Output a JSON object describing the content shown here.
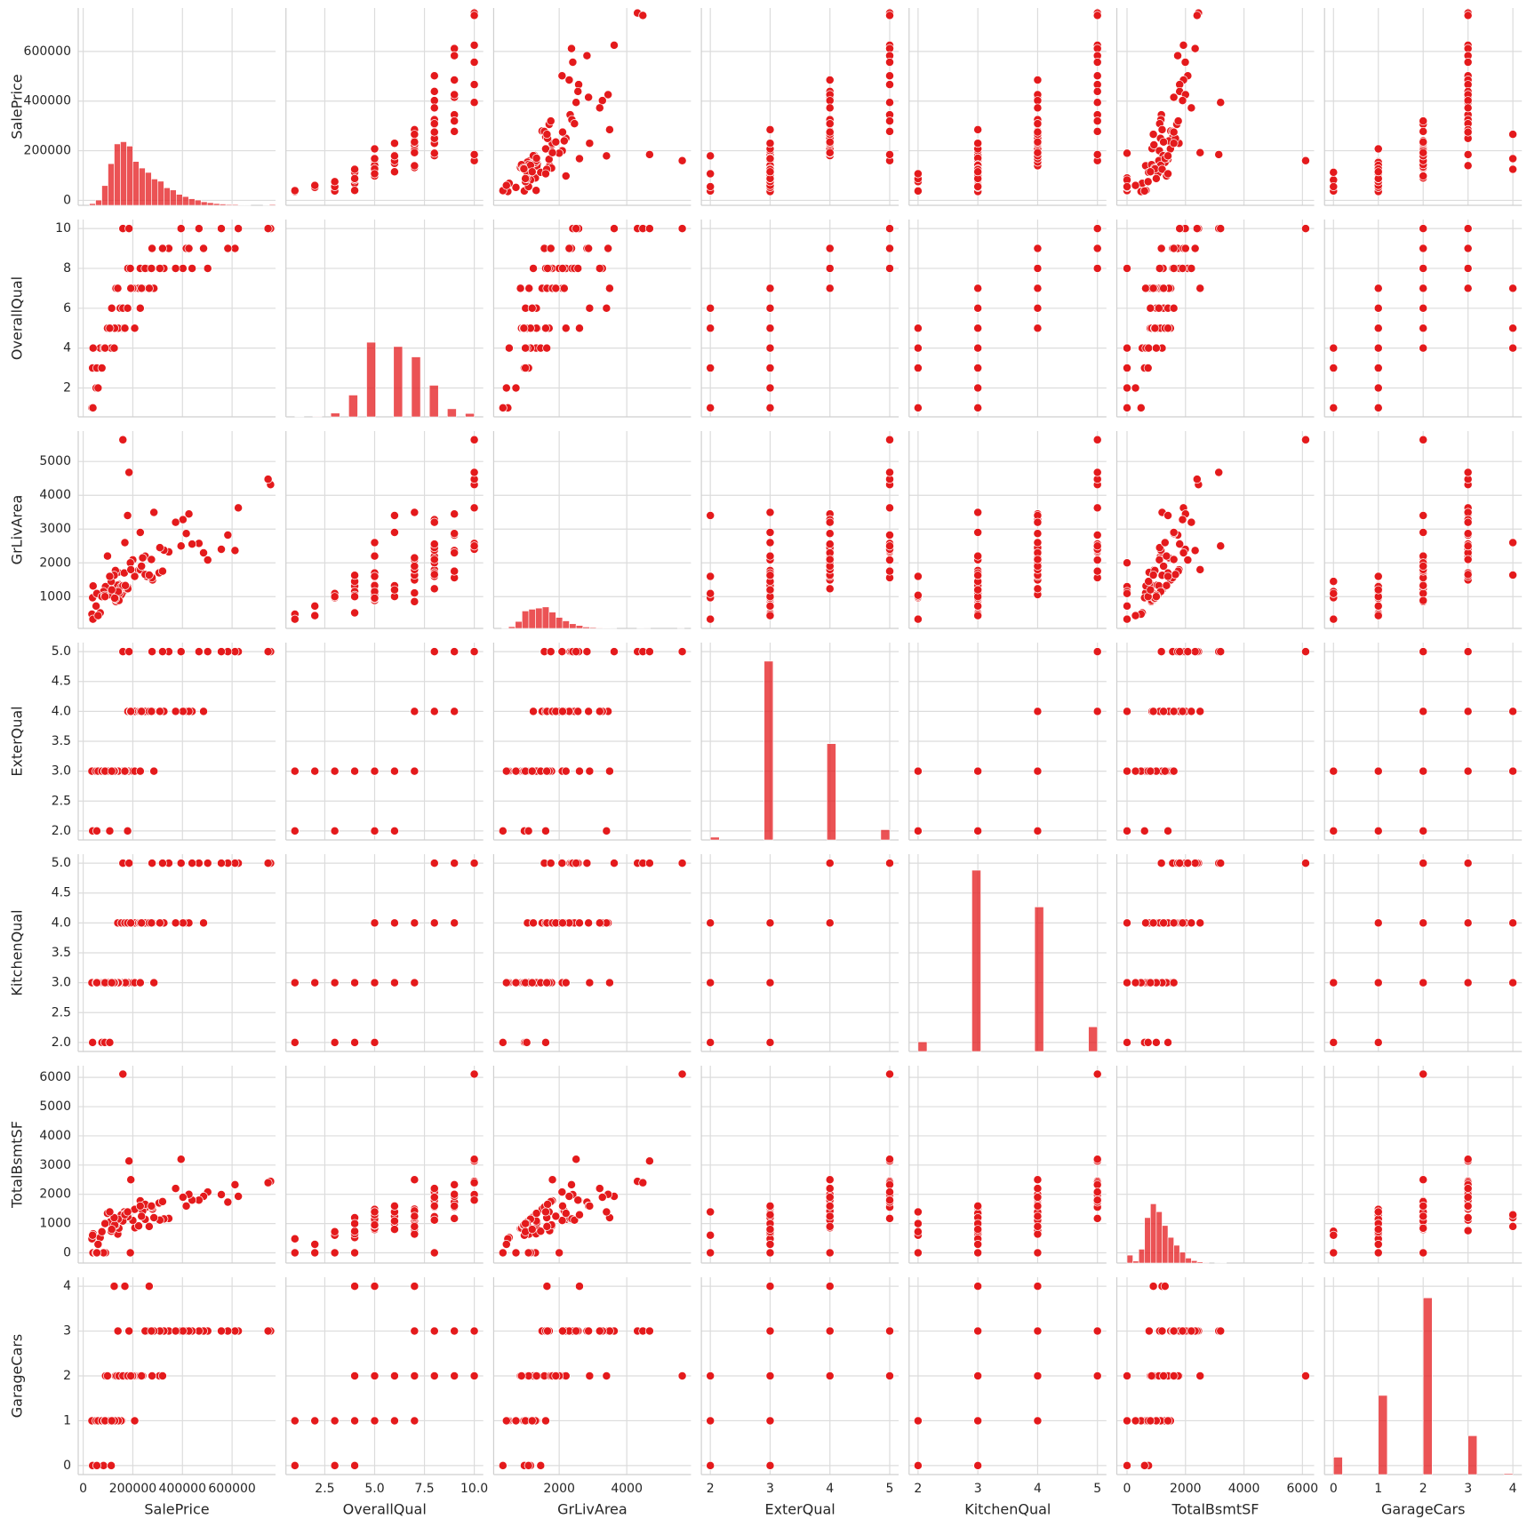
{
  "chart_data": {
    "type": "pairplot",
    "color": "#e41a1c",
    "grid": true,
    "variables": [
      {
        "name": "SalePrice",
        "lim": [
          -20000,
          775000
        ],
        "xticks": [
          0,
          200000,
          400000,
          600000
        ],
        "yticks": [
          0,
          200000,
          400000,
          600000
        ],
        "values": [
          208500,
          181500,
          223500,
          140000,
          250000,
          143000,
          307000,
          200000,
          129900,
          118000,
          129500,
          345000,
          144000,
          279500,
          157000,
          132000,
          149000,
          90000,
          159000,
          139000,
          325300,
          139400,
          230000,
          129900,
          154000,
          256300,
          134800,
          306000,
          207500,
          68500,
          40000,
          149350,
          179900,
          165500,
          277500,
          309000,
          145000,
          153000,
          109000,
          82000,
          160000,
          170000,
          144000,
          130250,
          141000,
          319900,
          239686,
          249700,
          113000,
          127000,
          755000,
          745000,
          160000,
          184750,
          625000,
          611657,
          582933,
          556581,
          501837,
          485000,
          466500,
          438780,
          415298,
          35311,
          39300,
          37900,
          52000,
          60000,
          55000,
          75500,
          87000,
          98000,
          394432,
          426000,
          285000,
          190000,
          125000,
          168000,
          265979,
          402000,
          179000,
          107000,
          230000,
          372500,
          192000,
          88000,
          115000,
          235000,
          275000
        ],
        "hist": {
          "bins": [
            25000,
            50000,
            75000,
            100000,
            125000,
            150000,
            175000,
            200000,
            225000,
            250000,
            275000,
            300000,
            325000,
            350000,
            375000,
            400000,
            425000,
            450000,
            475000,
            500000,
            525000,
            550000,
            575000,
            600000,
            625000,
            650000,
            675000,
            700000,
            725000,
            750000,
            775000
          ],
          "counts": [
            4,
            12,
            45,
            95,
            140,
            145,
            135,
            100,
            85,
            75,
            60,
            55,
            40,
            35,
            25,
            20,
            15,
            12,
            8,
            6,
            4,
            3,
            2,
            2,
            1,
            1,
            0,
            0,
            1,
            2
          ],
          "ylim": [
            0,
            450
          ]
        }
      },
      {
        "name": "OverallQual",
        "lim": [
          0.55,
          10.45
        ],
        "xticks": [
          2.5,
          {
            "value": 5,
            "label": "5.0"
          },
          7.5,
          {
            "value": 10,
            "label": "10.0"
          }
        ],
        "yticks": [
          2,
          4,
          6,
          8,
          10
        ],
        "values": [
          7,
          6,
          7,
          7,
          8,
          5,
          8,
          7,
          7,
          5,
          5,
          9,
          5,
          7,
          6,
          7,
          6,
          4,
          5,
          5,
          8,
          7,
          8,
          5,
          5,
          8,
          5,
          8,
          5,
          4,
          4,
          5,
          8,
          5,
          9,
          8,
          5,
          5,
          5,
          4,
          6,
          5,
          5,
          5,
          5,
          9,
          7,
          8,
          4,
          5,
          10,
          10,
          10,
          10,
          10,
          9,
          9,
          10,
          8,
          9,
          10,
          8,
          9,
          1,
          1,
          3,
          2,
          2,
          3,
          3,
          4,
          5,
          10,
          9,
          7,
          8,
          4,
          5,
          7,
          8,
          6,
          5,
          6,
          8,
          7,
          4,
          6,
          7,
          8
        ],
        "hist": {
          "bins": [
            1,
            1.45,
            1.9,
            2.35,
            2.8,
            3.25,
            3.7,
            4.15,
            4.6,
            5.05,
            5.5,
            5.95,
            6.4,
            6.85,
            7.3,
            7.75,
            8.2,
            8.65,
            9.1,
            9.55,
            10
          ],
          "counts": [
            2,
            0,
            3,
            0,
            20,
            0,
            116,
            0,
            397,
            0,
            0,
            374,
            0,
            319,
            0,
            168,
            0,
            43,
            0,
            18
          ],
          "ylim": [
            0,
            1050
          ]
        }
      },
      {
        "name": "GrLivArea",
        "lim": [
          60,
          5900
        ],
        "xticks": [
          2000,
          4000
        ],
        "yticks": [
          1000,
          2000,
          3000,
          4000,
          5000
        ],
        "values": [
          1710,
          1262,
          1786,
          1717,
          2198,
          1362,
          1694,
          2090,
          1774,
          1077,
          1040,
          2324,
          912,
          1494,
          1253,
          854,
          1004,
          1296,
          1114,
          1339,
          2376,
          1108,
          1795,
          1060,
          1060,
          1600,
          900,
          1704,
          1600,
          520,
          1317,
          1228,
          1234,
          1700,
          1561,
          2452,
          1097,
          1297,
          1057,
          1152,
          1324,
          1328,
          884,
          938,
          1150,
          1752,
          2149,
          1656,
          1452,
          955,
          4316,
          4476,
          5642,
          4676,
          3627,
          2364,
          2822,
          2402,
          2084,
          2296,
          2576,
          2555,
          2868,
          480,
          334,
          968,
          720,
          438,
          1092,
          1000,
          1040,
          2200,
          2500,
          3447,
          3493,
          2000,
          1632,
          2600,
          1638,
          3279,
          3400,
          1600,
          2900,
          3200,
          1800,
          1000,
          1200,
          1900,
          2100
        ],
        "hist": {
          "bins": [
            300,
            500,
            700,
            900,
            1100,
            1300,
            1500,
            1700,
            1900,
            2100,
            2300,
            2500,
            2700,
            2900,
            3100,
            3300,
            3500,
            3700,
            3900,
            4100,
            4300,
            4500,
            4700,
            4900,
            5100,
            5300,
            5500,
            5700,
            5900
          ],
          "counts": [
            3,
            15,
            60,
            150,
            165,
            175,
            185,
            140,
            95,
            65,
            40,
            25,
            12,
            8,
            5,
            4,
            2,
            0,
            0,
            0,
            2,
            1,
            0,
            0,
            0,
            0,
            1,
            0
          ],
          "ylim": [
            0,
            1700
          ]
        }
      },
      {
        "name": "ExterQual",
        "lim": [
          1.85,
          5.15
        ],
        "xticks": [
          2,
          3,
          4,
          5
        ],
        "yticks": [
          {
            "value": 2,
            "label": "2.0"
          },
          2.5,
          {
            "value": 3,
            "label": "3.0"
          },
          3.5,
          {
            "value": 4,
            "label": "4.0"
          },
          4.5,
          {
            "value": 5,
            "label": "5.0"
          }
        ],
        "values": [
          4,
          3,
          4,
          3,
          4,
          3,
          4,
          3,
          3,
          3,
          3,
          5,
          3,
          4,
          3,
          3,
          3,
          3,
          3,
          3,
          4,
          3,
          4,
          3,
          3,
          4,
          3,
          4,
          3,
          3,
          3,
          3,
          4,
          3,
          5,
          4,
          3,
          3,
          3,
          3,
          3,
          3,
          3,
          3,
          3,
          5,
          4,
          4,
          3,
          3,
          5,
          5,
          5,
          5,
          5,
          5,
          5,
          5,
          5,
          4,
          5,
          4,
          4,
          3,
          2,
          2,
          3,
          3,
          2,
          3,
          3,
          3,
          5,
          4,
          3,
          4,
          3,
          3,
          4,
          4,
          2,
          2,
          3,
          4,
          4,
          3,
          3,
          4,
          4
        ],
        "hist": {
          "bins": [
            2,
            2.15,
            2.3,
            2.45,
            2.6,
            2.75,
            2.9,
            3.05,
            3.2,
            3.35,
            3.5,
            3.65,
            3.8,
            3.95,
            4.1,
            4.25,
            4.4,
            4.55,
            4.7,
            4.85,
            5
          ],
          "counts": [
            14,
            0,
            0,
            0,
            0,
            0,
            906,
            0,
            0,
            0,
            0,
            0,
            0,
            488,
            0,
            0,
            0,
            0,
            0,
            52
          ],
          "ylim": [
            0,
            1000
          ]
        }
      },
      {
        "name": "KitchenQual",
        "lim": [
          1.85,
          5.15
        ],
        "xticks": [
          2,
          3,
          4,
          5
        ],
        "yticks": [
          {
            "value": 2,
            "label": "2.0"
          },
          2.5,
          {
            "value": 3,
            "label": "3.0"
          },
          3.5,
          {
            "value": 4,
            "label": "4.0"
          },
          4.5,
          {
            "value": 5,
            "label": "5.0"
          }
        ],
        "values": [
          4,
          3,
          4,
          4,
          4,
          3,
          4,
          3,
          3,
          3,
          3,
          5,
          3,
          4,
          3,
          3,
          3,
          3,
          3,
          3,
          4,
          4,
          4,
          3,
          4,
          4,
          3,
          4,
          3,
          3,
          3,
          3,
          4,
          3,
          5,
          4,
          3,
          3,
          3,
          3,
          3,
          3,
          3,
          3,
          3,
          5,
          4,
          4,
          3,
          3,
          5,
          5,
          5,
          5,
          5,
          5,
          5,
          5,
          5,
          4,
          5,
          5,
          4,
          3,
          2,
          2,
          3,
          3,
          3,
          2,
          2,
          3,
          5,
          4,
          3,
          4,
          3,
          4,
          4,
          4,
          4,
          2,
          3,
          4,
          4,
          3,
          3,
          4,
          4
        ],
        "hist": {
          "bins": [
            2,
            2.15,
            2.3,
            2.45,
            2.6,
            2.75,
            2.9,
            3.05,
            3.2,
            3.35,
            3.5,
            3.65,
            3.8,
            3.95,
            4.1,
            4.25,
            4.4,
            4.55,
            4.7,
            4.85,
            5
          ],
          "counts": [
            39,
            0,
            0,
            0,
            0,
            0,
            735,
            0,
            0,
            0,
            0,
            0,
            0,
            586,
            0,
            0,
            0,
            0,
            0,
            100
          ],
          "ylim": [
            0,
            800
          ]
        }
      },
      {
        "name": "TotalBsmtSF",
        "lim": [
          -350,
          6400
        ],
        "xticks": [
          0,
          2000,
          4000,
          6000
        ],
        "yticks": [
          0,
          1000,
          2000,
          3000,
          4000,
          5000,
          6000
        ],
        "values": [
          856,
          1262,
          920,
          756,
          1145,
          796,
          1686,
          1107,
          952,
          991,
          1040,
          1175,
          912,
          1494,
          1253,
          832,
          1004,
          0,
          1114,
          1029,
          1158,
          637,
          1777,
          1040,
          1060,
          1566,
          900,
          1704,
          1484,
          520,
          649,
          1228,
          1234,
          1398,
          1561,
          1117,
          1097,
          1297,
          1057,
          0,
          1088,
          1350,
          840,
          938,
          1150,
          1752,
          1434,
          1656,
          736,
          955,
          2444,
          2396,
          6110,
          3138,
          1930,
          2330,
          1734,
          1992,
          2078,
          1932,
          1800,
          1800,
          1600,
          480,
          0,
          600,
          0,
          290,
          0,
          720,
          1000,
          1350,
          3200,
          2000,
          1200,
          0,
          1200,
          1300,
          900,
          1900,
          1400,
          1400,
          1600,
          2200,
          2500,
          1000,
          800,
          1250,
          1600
        ],
        "hist": {
          "bins": [
            0,
            200,
            400,
            600,
            800,
            1000,
            1200,
            1400,
            1600,
            1800,
            2000,
            2200,
            2400,
            2600,
            2800,
            3000,
            3200,
            3400,
            3600,
            3800,
            4000,
            4200,
            4400,
            4600,
            4800,
            5000,
            5200,
            5400,
            5600,
            5800,
            6000,
            6200
          ],
          "counts": [
            40,
            10,
            70,
            230,
            300,
            260,
            190,
            130,
            90,
            55,
            25,
            12,
            6,
            3,
            0,
            1,
            2,
            0,
            0,
            0,
            0,
            0,
            0,
            0,
            0,
            0,
            0,
            0,
            0,
            0,
            1
          ],
          "ylim": [
            0,
            1000
          ]
        }
      },
      {
        "name": "GarageCars",
        "lim": [
          -0.2,
          4.2
        ],
        "xticks": [
          0,
          1,
          2,
          3,
          4
        ],
        "yticks": [
          0,
          1,
          2,
          3,
          4
        ],
        "values": [
          2,
          2,
          2,
          3,
          3,
          2,
          2,
          2,
          2,
          1,
          1,
          3,
          1,
          3,
          1,
          2,
          2,
          2,
          2,
          1,
          3,
          1,
          2,
          2,
          1,
          3,
          2,
          3,
          1,
          1,
          1,
          1,
          2,
          2,
          2,
          3,
          2,
          1,
          1,
          0,
          2,
          2,
          2,
          1,
          1,
          2,
          2,
          3,
          0,
          1,
          3,
          3,
          2,
          3,
          3,
          3,
          3,
          3,
          3,
          3,
          3,
          3,
          3,
          1,
          0,
          0,
          1,
          1,
          0,
          1,
          1,
          2,
          3,
          3,
          3,
          2,
          4,
          4,
          4,
          3,
          2,
          1,
          2,
          3,
          2,
          1,
          1,
          2,
          3
        ],
        "hist": {
          "bins": [
            0,
            0.2,
            0.4,
            0.6,
            0.8,
            1,
            1.2,
            1.4,
            1.6,
            1.8,
            2,
            2.2,
            2.4,
            2.6,
            2.8,
            3,
            3.2,
            3.4,
            3.6,
            3.8,
            4
          ],
          "counts": [
            81,
            0,
            0,
            0,
            0,
            369,
            0,
            0,
            0,
            0,
            824,
            0,
            0,
            0,
            0,
            181,
            0,
            0,
            0,
            5
          ],
          "ylim": [
            0,
            920
          ]
        }
      }
    ]
  }
}
